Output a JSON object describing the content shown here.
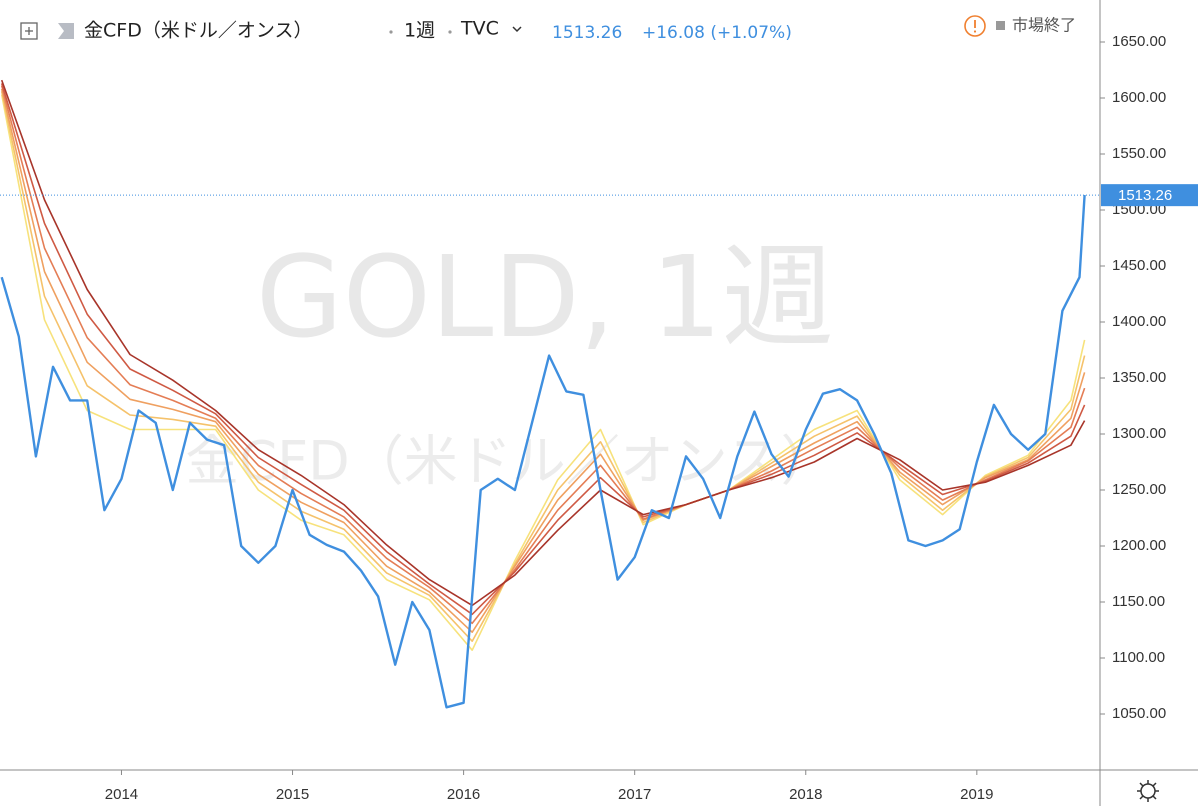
{
  "chart_data": {
    "type": "line",
    "title": "金CFD（米ドル／オンス）",
    "interval": "1週",
    "exchange": "TVC",
    "last_price": 1513.26,
    "change": "+16.08 (+1.07%)",
    "status": "市場終了",
    "watermark": "GOLD, 1週",
    "xlim": [
      2013.29,
      2019.72
    ],
    "ylim": [
      1000,
      1687.5
    ],
    "xticks": [
      2014,
      2015,
      2016,
      2017,
      2018,
      2019
    ],
    "yticks": [
      {
        "value": 1050,
        "label": "1050.00"
      },
      {
        "value": 1100,
        "label": "1100.00"
      },
      {
        "value": 1150,
        "label": "1150.00"
      },
      {
        "value": 1200,
        "label": "1200.00"
      },
      {
        "value": 1250,
        "label": "1250.00"
      },
      {
        "value": 1300,
        "label": "1300.00"
      },
      {
        "value": 1350,
        "label": "1350.00"
      },
      {
        "value": 1400,
        "label": "1400.00"
      },
      {
        "value": 1450,
        "label": "1450.00"
      },
      {
        "value": 1500,
        "label": "1500.00"
      },
      {
        "value": 1550,
        "label": "1550.00"
      },
      {
        "value": 1600,
        "label": "1600.00"
      },
      {
        "value": 1650,
        "label": "1650.00"
      }
    ],
    "grid": false,
    "x": [
      2013.3,
      2013.4,
      2013.5,
      2013.6,
      2013.7,
      2013.8,
      2013.9,
      2014.0,
      2014.1,
      2014.2,
      2014.3,
      2014.4,
      2014.5,
      2014.6,
      2014.7,
      2014.8,
      2014.9,
      2015.0,
      2015.1,
      2015.2,
      2015.3,
      2015.4,
      2015.5,
      2015.6,
      2015.7,
      2015.8,
      2015.9,
      2016.0,
      2016.1,
      2016.2,
      2016.3,
      2016.4,
      2016.5,
      2016.6,
      2016.7,
      2016.8,
      2016.9,
      2017.0,
      2017.1,
      2017.2,
      2017.3,
      2017.4,
      2017.5,
      2017.6,
      2017.7,
      2017.8,
      2017.9,
      2018.0,
      2018.1,
      2018.2,
      2018.3,
      2018.4,
      2018.5,
      2018.6,
      2018.7,
      2018.8,
      2018.9,
      2019.0,
      2019.1,
      2019.2,
      2019.3,
      2019.4,
      2019.5,
      2019.6,
      2019.63
    ],
    "series": [
      {
        "color": "#3f8fdf",
        "values": [
          1440,
          1387,
          1280,
          1360,
          1330,
          1330,
          1232,
          1260,
          1321,
          1310,
          1250,
          1310,
          1295,
          1290,
          1200,
          1185,
          1200,
          1250,
          1210,
          1201,
          1195,
          1178,
          1155,
          1094,
          1150,
          1125,
          1056,
          1060,
          1250,
          1260,
          1250,
          1310,
          1370,
          1338,
          1335,
          1250,
          1170,
          1190,
          1232,
          1225,
          1280,
          1260,
          1225,
          1280,
          1320,
          1282,
          1262,
          1304,
          1336,
          1340,
          1330,
          1300,
          1265,
          1205,
          1200,
          1205,
          1215,
          1275,
          1326,
          1300,
          1286,
          1300,
          1410,
          1440,
          1513.26
        ]
      },
      {
        "color": "#f7e27c",
        "x": [
          2013.3,
          2013.55,
          2013.8,
          2014.05,
          2014.3,
          2014.55,
          2014.8,
          2015.05,
          2015.3,
          2015.55,
          2015.8,
          2016.05,
          2016.3,
          2016.55,
          2016.8,
          2017.05,
          2017.3,
          2017.55,
          2017.8,
          2018.05,
          2018.3,
          2018.55,
          2018.8,
          2019.05,
          2019.3,
          2019.55,
          2019.63
        ],
        "values": [
          1603,
          1402,
          1321,
          1304,
          1304,
          1304,
          1250,
          1223,
          1210,
          1170,
          1152,
          1107,
          1187,
          1259,
          1304,
          1219,
          1237,
          1250,
          1277,
          1304,
          1321,
          1259,
          1228,
          1263,
          1281,
          1330,
          1384
        ]
      },
      {
        "color": "#f5c26b",
        "x": [
          2013.3,
          2013.55,
          2013.8,
          2014.05,
          2014.3,
          2014.55,
          2014.8,
          2015.05,
          2015.3,
          2015.55,
          2015.8,
          2016.05,
          2016.3,
          2016.55,
          2016.8,
          2017.05,
          2017.3,
          2017.55,
          2017.8,
          2018.05,
          2018.3,
          2018.55,
          2018.8,
          2019.05,
          2019.3,
          2019.55,
          2019.63
        ],
        "values": [
          1606,
          1423,
          1343,
          1317,
          1313,
          1307,
          1257,
          1231,
          1215,
          1176,
          1156,
          1115,
          1184,
          1250,
          1293,
          1221,
          1237,
          1250,
          1274,
          1298,
          1316,
          1263,
          1232,
          1262,
          1279,
          1322,
          1370
        ]
      },
      {
        "color": "#efa060",
        "x": [
          2013.3,
          2013.55,
          2013.8,
          2014.05,
          2014.3,
          2014.55,
          2014.8,
          2015.05,
          2015.3,
          2015.55,
          2015.8,
          2016.05,
          2016.3,
          2016.55,
          2016.8,
          2017.05,
          2017.3,
          2017.55,
          2017.8,
          2018.05,
          2018.3,
          2018.55,
          2018.8,
          2019.05,
          2019.3,
          2019.55,
          2019.63
        ],
        "values": [
          1608,
          1445,
          1364,
          1331,
          1322,
          1311,
          1264,
          1239,
          1221,
          1182,
          1159,
          1123,
          1182,
          1241,
          1282,
          1223,
          1237,
          1250,
          1271,
          1292,
          1311,
          1266,
          1237,
          1261,
          1277,
          1314,
          1355
        ]
      },
      {
        "color": "#e47d55",
        "x": [
          2013.3,
          2013.55,
          2013.8,
          2014.05,
          2014.3,
          2014.55,
          2014.8,
          2015.05,
          2015.3,
          2015.55,
          2015.8,
          2016.05,
          2016.3,
          2016.55,
          2016.8,
          2017.05,
          2017.3,
          2017.55,
          2017.8,
          2018.05,
          2018.3,
          2018.55,
          2018.8,
          2019.05,
          2019.3,
          2019.55,
          2019.63
        ],
        "values": [
          1611,
          1466,
          1386,
          1344,
          1330,
          1314,
          1272,
          1247,
          1226,
          1189,
          1163,
          1131,
          1179,
          1232,
          1272,
          1224,
          1237,
          1250,
          1267,
          1287,
          1306,
          1270,
          1241,
          1259,
          1276,
          1306,
          1341
        ]
      },
      {
        "color": "#cf5a44",
        "x": [
          2013.3,
          2013.55,
          2013.8,
          2014.05,
          2014.3,
          2014.55,
          2014.8,
          2015.05,
          2015.3,
          2015.55,
          2015.8,
          2016.05,
          2016.3,
          2016.55,
          2016.8,
          2017.05,
          2017.3,
          2017.55,
          2017.8,
          2018.05,
          2018.3,
          2018.55,
          2018.8,
          2019.05,
          2019.3,
          2019.55,
          2019.63
        ],
        "values": [
          1613,
          1488,
          1407,
          1358,
          1339,
          1318,
          1279,
          1255,
          1232,
          1195,
          1166,
          1139,
          1177,
          1223,
          1261,
          1226,
          1237,
          1250,
          1264,
          1281,
          1301,
          1273,
          1246,
          1258,
          1274,
          1298,
          1326
        ]
      },
      {
        "color": "#a8352a",
        "x": [
          2013.3,
          2013.55,
          2013.8,
          2014.05,
          2014.3,
          2014.55,
          2014.8,
          2015.05,
          2015.3,
          2015.55,
          2015.8,
          2016.05,
          2016.3,
          2016.55,
          2016.8,
          2017.05,
          2017.3,
          2017.55,
          2017.8,
          2018.05,
          2018.3,
          2018.55,
          2018.8,
          2019.05,
          2019.3,
          2019.55,
          2019.63
        ],
        "values": [
          1616,
          1509,
          1429,
          1371,
          1348,
          1321,
          1286,
          1263,
          1237,
          1201,
          1170,
          1147,
          1174,
          1214,
          1250,
          1228,
          1237,
          1250,
          1261,
          1275,
          1296,
          1277,
          1250,
          1257,
          1272,
          1290,
          1312
        ]
      }
    ]
  }
}
